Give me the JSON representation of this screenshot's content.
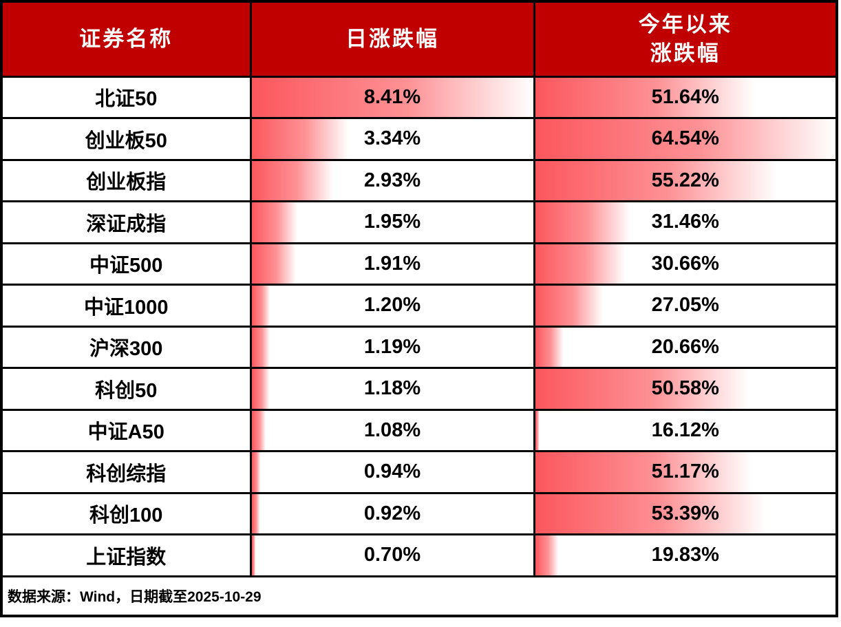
{
  "chart_data": {
    "type": "table",
    "title": "",
    "columns": [
      "证券名称",
      "日涨跌幅",
      "今年以来\n涨跌幅"
    ],
    "rows": [
      {
        "name": "北证50",
        "daily": "8.41%",
        "ytd": "51.64%"
      },
      {
        "name": "创业板50",
        "daily": "3.34%",
        "ytd": "64.54%"
      },
      {
        "name": "创业板指",
        "daily": "2.93%",
        "ytd": "55.22%"
      },
      {
        "name": "深证成指",
        "daily": "1.95%",
        "ytd": "31.46%"
      },
      {
        "name": "中证500",
        "daily": "1.91%",
        "ytd": "30.66%"
      },
      {
        "name": "中证1000",
        "daily": "1.20%",
        "ytd": "27.05%"
      },
      {
        "name": "沪深300",
        "daily": "1.19%",
        "ytd": "20.66%"
      },
      {
        "name": "科创50",
        "daily": "1.18%",
        "ytd": "50.58%"
      },
      {
        "name": "中证A50",
        "daily": "1.08%",
        "ytd": "16.12%"
      },
      {
        "name": "科创综指",
        "daily": "0.94%",
        "ytd": "51.17%"
      },
      {
        "name": "科创100",
        "daily": "0.92%",
        "ytd": "53.39%"
      },
      {
        "name": "上证指数",
        "daily": "0.70%",
        "ytd": "19.83%"
      }
    ],
    "databar_scaling": "min-max per column",
    "daily_values": [
      8.41,
      3.34,
      2.93,
      1.95,
      1.91,
      1.2,
      1.19,
      1.18,
      1.08,
      0.94,
      0.92,
      0.7
    ],
    "ytd_values": [
      51.64,
      64.54,
      55.22,
      31.46,
      30.66,
      27.05,
      20.66,
      50.58,
      16.12,
      51.17,
      53.39,
      19.83
    ]
  },
  "footer": {
    "source_note": "数据来源：Wind，日期截至2025-10-29"
  },
  "colors": {
    "header_bg": "#c00000",
    "header_text": "#ffffff",
    "bar_red": "#fb575d",
    "bar_mid": "#fd9195",
    "border": "#000000",
    "value_text": "#000000"
  }
}
